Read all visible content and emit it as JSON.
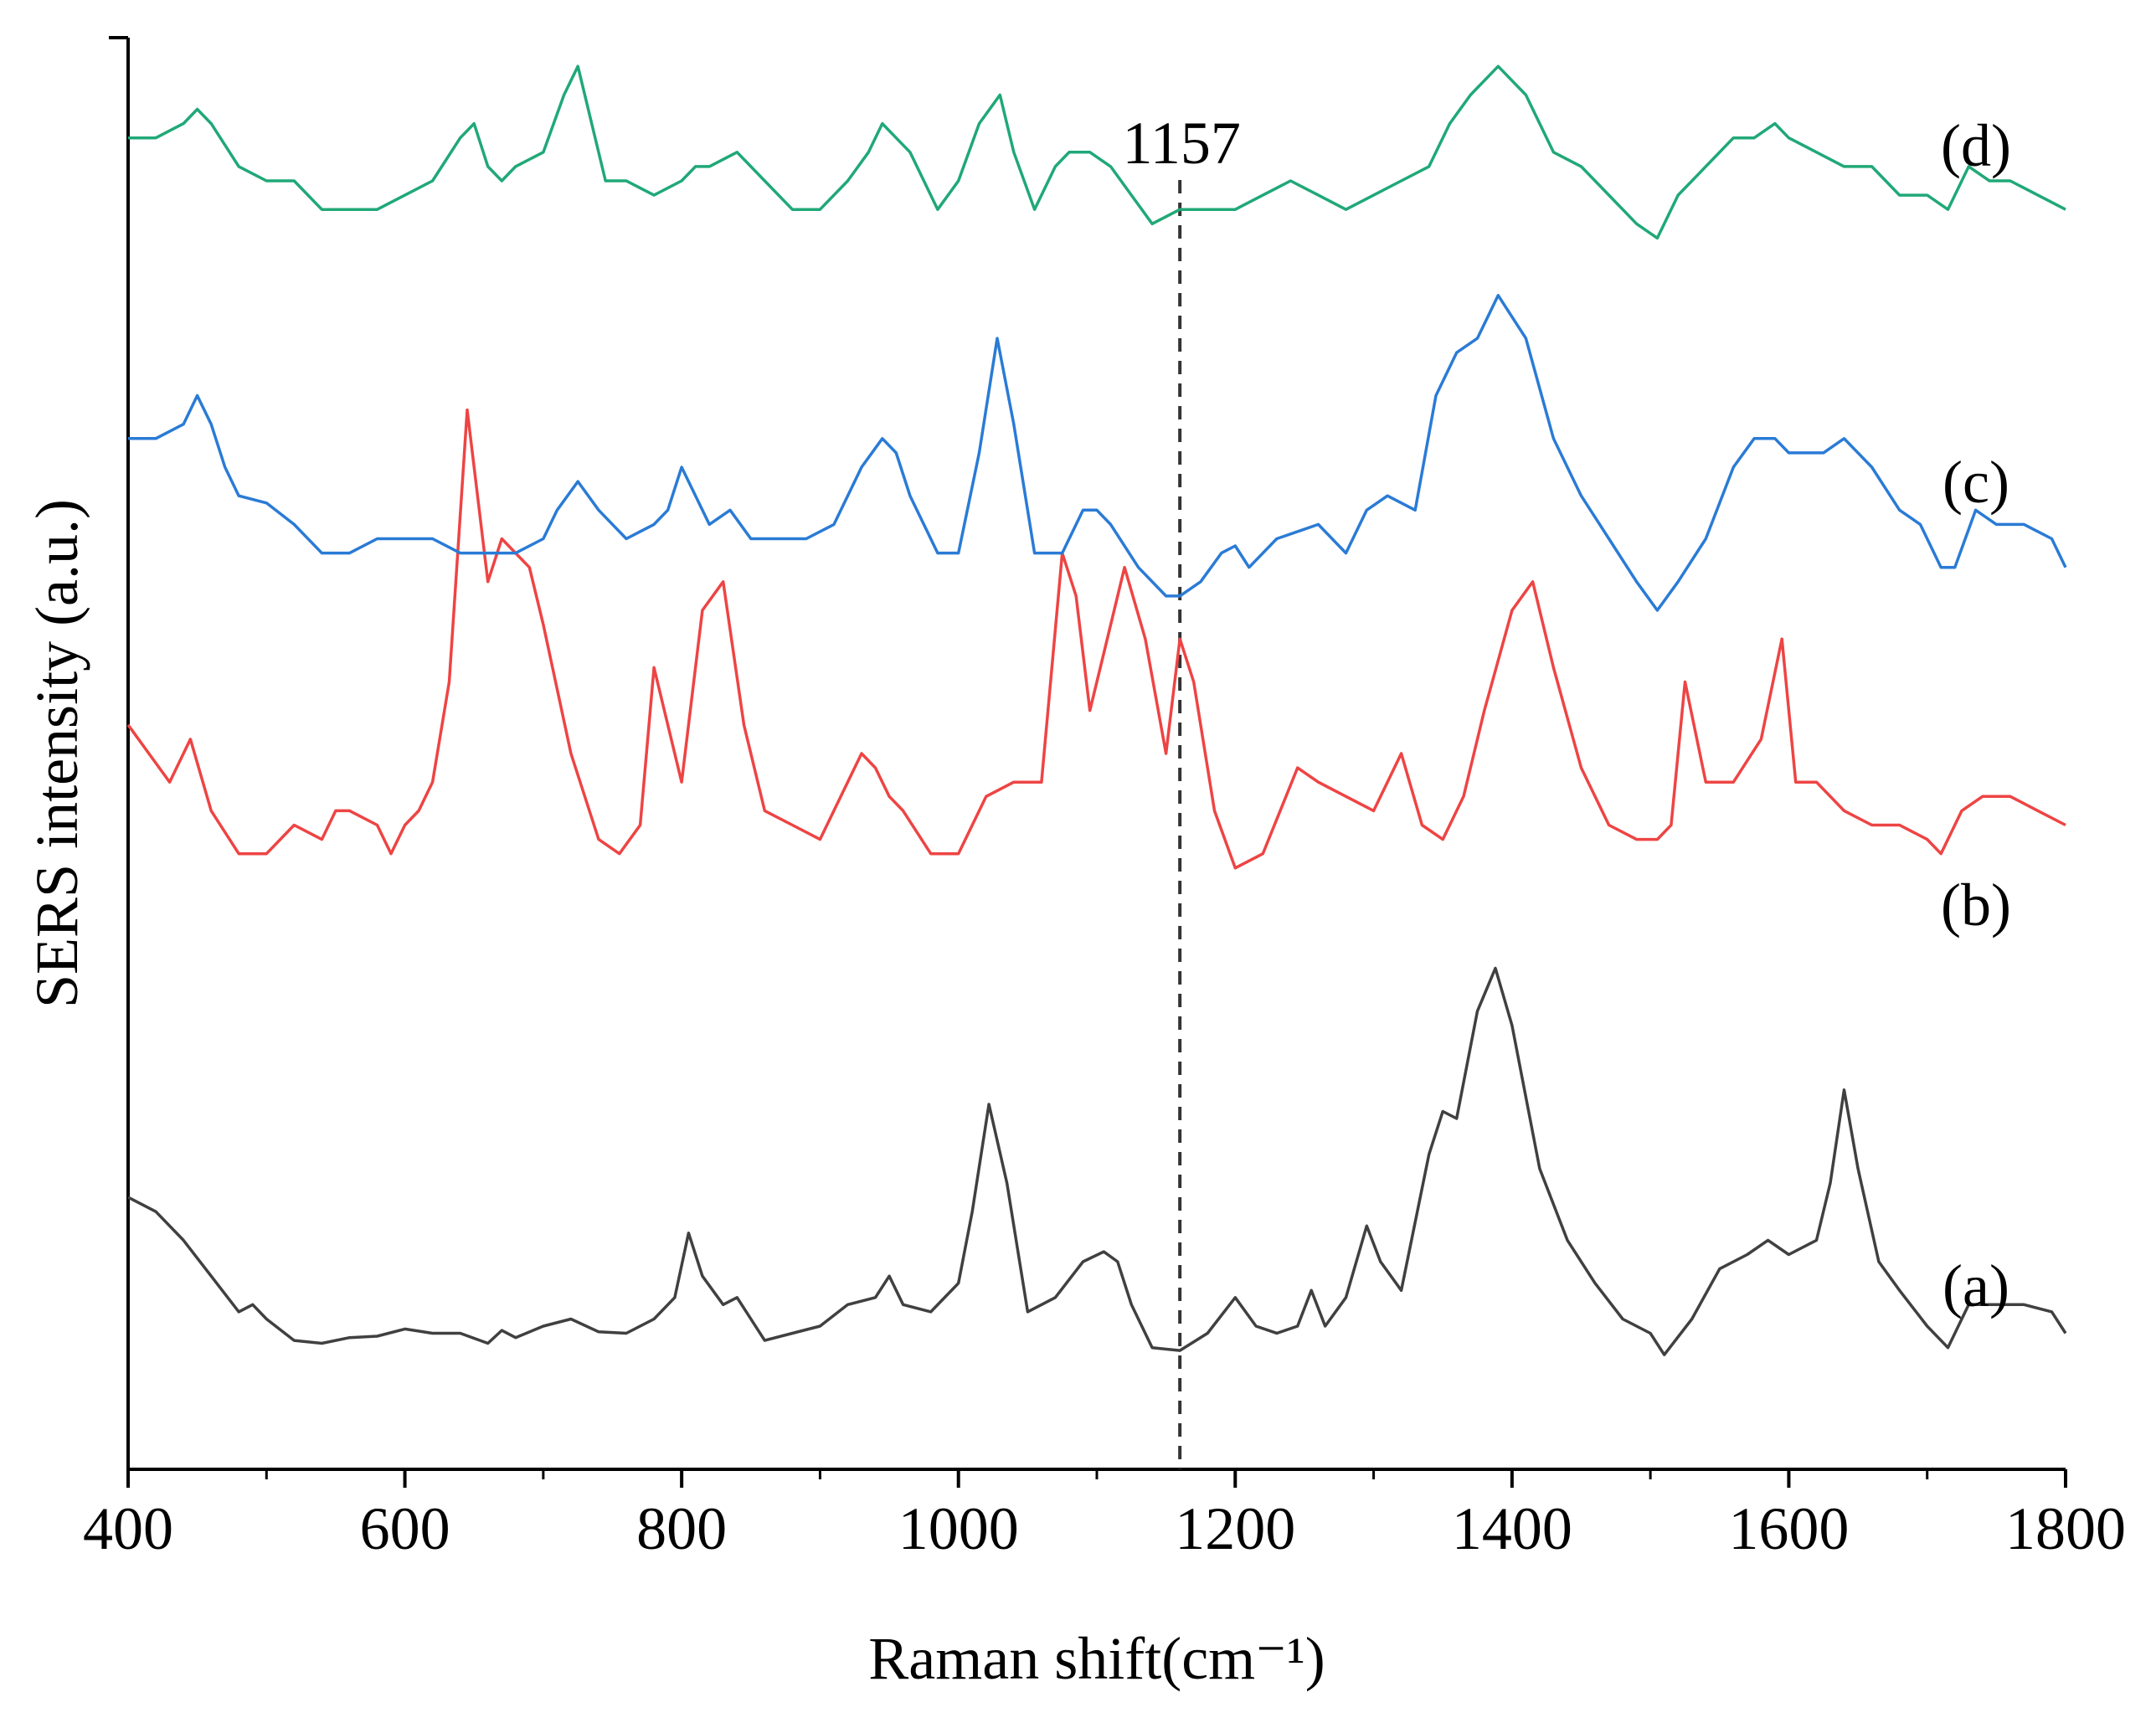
{
  "chart_data": {
    "type": "line",
    "title": "",
    "xlabel": "Raman shift(cm⁻¹)",
    "ylabel": "SERS intensity (a.u.)",
    "xlim": [
      400,
      1800
    ],
    "ylim": [
      0,
      100
    ],
    "x_ticks": [
      400,
      600,
      800,
      1000,
      1200,
      1400,
      1600,
      1800
    ],
    "y_ticks_shown": false,
    "grid": false,
    "legend": "none",
    "annotations": [
      {
        "text": "1157",
        "x": 1160,
        "type": "vertical-dashed-line"
      }
    ],
    "series": [
      {
        "name": "(a)",
        "color": "#404040",
        "x": [
          400,
          420,
          440,
          460,
          480,
          490,
          500,
          520,
          540,
          560,
          580,
          600,
          620,
          640,
          660,
          670,
          680,
          700,
          720,
          740,
          760,
          780,
          795,
          805,
          815,
          830,
          840,
          860,
          880,
          900,
          920,
          940,
          950,
          960,
          980,
          1000,
          1010,
          1022,
          1035,
          1050,
          1070,
          1090,
          1105,
          1115,
          1125,
          1140,
          1160,
          1180,
          1200,
          1215,
          1230,
          1245,
          1255,
          1265,
          1280,
          1295,
          1305,
          1320,
          1340,
          1350,
          1360,
          1375,
          1388,
          1400,
          1420,
          1440,
          1460,
          1480,
          1500,
          1510,
          1530,
          1550,
          1570,
          1585,
          1600,
          1620,
          1630,
          1640,
          1650,
          1665,
          1680,
          1700,
          1715,
          1730,
          1750,
          1770,
          1790,
          1800
        ],
        "values": [
          19,
          18,
          16,
          13.5,
          11,
          11.5,
          10.5,
          9,
          8.8,
          9.2,
          9.3,
          9.8,
          9.5,
          9.5,
          8.8,
          9.7,
          9.2,
          10,
          10.5,
          9.6,
          9.5,
          10.5,
          12,
          16.5,
          13.5,
          11.5,
          12,
          9,
          9.5,
          10,
          11.5,
          12,
          13.5,
          11.5,
          11,
          13,
          18,
          25.5,
          20,
          11,
          12,
          14.5,
          15.2,
          14.5,
          11.5,
          8.5,
          8.3,
          9.5,
          12,
          10,
          9.5,
          10,
          12.5,
          10,
          12,
          17,
          14.5,
          12.5,
          22,
          25,
          24.5,
          32,
          35,
          31,
          21,
          16,
          13,
          10.5,
          9.5,
          8,
          10.5,
          14,
          15,
          16,
          15,
          16,
          20,
          26.5,
          21,
          14.5,
          12.5,
          10,
          8.5,
          11.5,
          11.5,
          11.5,
          11,
          9.5
        ]
      },
      {
        "name": "(b)",
        "color": "#ee4444",
        "x": [
          400,
          415,
          430,
          445,
          460,
          480,
          500,
          520,
          540,
          550,
          560,
          580,
          590,
          600,
          610,
          620,
          632,
          645,
          660,
          670,
          680,
          690,
          700,
          720,
          740,
          755,
          770,
          780,
          790,
          800,
          815,
          830,
          845,
          860,
          880,
          900,
          915,
          930,
          940,
          950,
          960,
          980,
          1000,
          1020,
          1040,
          1060,
          1075,
          1085,
          1095,
          1105,
          1120,
          1135,
          1150,
          1160,
          1170,
          1185,
          1200,
          1220,
          1245,
          1260,
          1280,
          1300,
          1320,
          1335,
          1350,
          1365,
          1380,
          1400,
          1415,
          1430,
          1450,
          1470,
          1490,
          1505,
          1515,
          1525,
          1540,
          1560,
          1580,
          1595,
          1605,
          1620,
          1640,
          1660,
          1680,
          1700,
          1710,
          1725,
          1740,
          1760,
          1780,
          1800
        ],
        "values": [
          52,
          50,
          48,
          51,
          46,
          43,
          43,
          45,
          44,
          46,
          46,
          45,
          43,
          45,
          46,
          48,
          55,
          74,
          62,
          65,
          64,
          63,
          59,
          50,
          44,
          43,
          45,
          56,
          52,
          48,
          60,
          62,
          52,
          46,
          45,
          44,
          47,
          50,
          49,
          47,
          46,
          43,
          43,
          47,
          48,
          48,
          64,
          61,
          53,
          57,
          63,
          58,
          50,
          58,
          55,
          46,
          42,
          43,
          49,
          48,
          47,
          46,
          50,
          45,
          44,
          47,
          53,
          60,
          62,
          56,
          49,
          45,
          44,
          44,
          45,
          55,
          48,
          48,
          51,
          58,
          48,
          48,
          46,
          45,
          45,
          44,
          43,
          46,
          47,
          47,
          46,
          45
        ]
      },
      {
        "name": "(c)",
        "color": "#2a7bd5",
        "x": [
          400,
          420,
          440,
          450,
          460,
          470,
          480,
          500,
          520,
          540,
          560,
          580,
          600,
          620,
          640,
          660,
          670,
          680,
          700,
          710,
          725,
          740,
          760,
          780,
          790,
          800,
          805,
          820,
          835,
          850,
          870,
          890,
          910,
          930,
          945,
          955,
          965,
          985,
          1000,
          1015,
          1028,
          1040,
          1055,
          1075,
          1090,
          1100,
          1110,
          1130,
          1150,
          1160,
          1175,
          1190,
          1200,
          1210,
          1230,
          1260,
          1280,
          1295,
          1310,
          1330,
          1345,
          1360,
          1375,
          1390,
          1410,
          1430,
          1450,
          1470,
          1490,
          1505,
          1520,
          1540,
          1560,
          1575,
          1590,
          1600,
          1610,
          1625,
          1640,
          1660,
          1680,
          1695,
          1710,
          1720,
          1735,
          1750,
          1770,
          1790,
          1800
        ],
        "values": [
          72,
          72,
          73,
          75,
          73,
          70,
          68,
          67.5,
          66,
          64,
          64,
          65,
          65,
          65,
          64,
          64,
          64,
          64,
          65,
          67,
          69,
          67,
          65,
          66,
          67,
          70,
          69,
          66,
          67,
          65,
          65,
          65,
          66,
          70,
          72,
          71,
          68,
          64,
          64,
          71,
          79,
          73,
          64,
          64,
          67,
          67,
          66,
          63,
          61,
          61,
          62,
          64,
          64.5,
          63,
          65,
          66,
          64,
          67,
          68,
          67,
          75,
          78,
          79,
          82,
          79,
          72,
          68,
          65,
          62,
          60,
          62,
          65,
          70,
          72,
          72,
          71,
          71,
          71,
          72,
          70,
          67,
          66,
          63,
          63,
          67,
          66,
          66,
          65,
          63
        ]
      },
      {
        "name": "(d)",
        "color": "#20a878",
        "x": [
          400,
          420,
          440,
          450,
          460,
          480,
          500,
          520,
          540,
          560,
          580,
          600,
          620,
          640,
          650,
          660,
          670,
          680,
          700,
          715,
          725,
          735,
          745,
          760,
          780,
          800,
          810,
          820,
          840,
          860,
          880,
          900,
          920,
          935,
          945,
          955,
          965,
          985,
          1000,
          1015,
          1030,
          1040,
          1055,
          1070,
          1080,
          1095,
          1110,
          1125,
          1140,
          1160,
          1180,
          1200,
          1220,
          1240,
          1260,
          1280,
          1300,
          1320,
          1340,
          1355,
          1370,
          1390,
          1410,
          1430,
          1450,
          1470,
          1490,
          1505,
          1520,
          1540,
          1560,
          1575,
          1590,
          1600,
          1620,
          1640,
          1660,
          1680,
          1700,
          1715,
          1730,
          1745,
          1760,
          1780,
          1800
        ],
        "values": [
          93,
          93,
          94,
          95,
          94,
          91,
          90,
          90,
          88,
          88,
          88,
          89,
          90,
          93,
          94,
          91,
          90,
          91,
          92,
          96,
          98,
          94,
          90,
          90,
          89,
          90,
          91,
          91,
          92,
          90,
          88,
          88,
          90,
          92,
          94,
          93,
          92,
          88,
          90,
          94,
          96,
          92,
          88,
          91,
          92,
          92,
          91,
          89,
          87,
          88,
          88,
          88,
          89,
          90,
          89,
          88,
          89,
          90,
          91,
          94,
          96,
          98,
          96,
          92,
          91,
          89,
          87,
          86,
          89,
          91,
          93,
          93,
          94,
          93,
          92,
          91,
          91,
          89,
          89,
          88,
          91,
          90,
          90,
          89,
          88
        ]
      }
    ],
    "series_labels": [
      "(d)",
      "(c)",
      "(b)",
      "(a)"
    ]
  }
}
